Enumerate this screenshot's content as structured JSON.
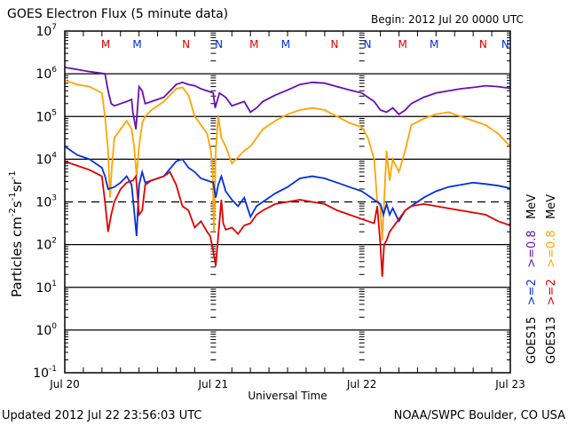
{
  "chart_data": {
    "type": "line",
    "title": "GOES Electron Flux (5 minute data)",
    "begin": "Begin: 2012 Jul 20 0000 UTC",
    "xlabel": "Universal Time",
    "ylabel_parts": {
      "main": "Particles cm",
      "exp1": "-2",
      "s": "s",
      "exp2": "-1",
      "sr": "sr",
      "exp3": "-1"
    },
    "updated": "Updated 2012 Jul 22 23:56:03 UTC",
    "credit": "NOAA/SWPC Boulder, CO USA",
    "x_range_hours": [
      0,
      72
    ],
    "x_ticks": [
      {
        "hour": 0,
        "label": "Jul 20"
      },
      {
        "hour": 24,
        "label": "Jul 21"
      },
      {
        "hour": 48,
        "label": "Jul 22"
      },
      {
        "hour": 72,
        "label": "Jul 23"
      }
    ],
    "y_scale": "log",
    "y_range_log10": [
      -1,
      7
    ],
    "y_ticks": [
      {
        "base": "10",
        "exp": "7",
        "v": 7
      },
      {
        "base": "10",
        "exp": "6",
        "v": 6
      },
      {
        "base": "10",
        "exp": "5",
        "v": 5
      },
      {
        "base": "10",
        "exp": "4",
        "v": 4
      },
      {
        "base": "10",
        "exp": "3",
        "v": 3
      },
      {
        "base": "10",
        "exp": "2",
        "v": 2
      },
      {
        "base": "10",
        "exp": "1",
        "v": 1
      },
      {
        "base": "10",
        "exp": "0",
        "v": 0
      },
      {
        "base": "10",
        "exp": "-1",
        "v": -1
      }
    ],
    "threshold_log10": 3,
    "grid_lines_log10": [
      6,
      5,
      4,
      2,
      1,
      0
    ],
    "markers": [
      {
        "hour": 6.6,
        "label": "M",
        "color": "#e00000"
      },
      {
        "hour": 11.7,
        "label": "M",
        "color": "#0030e0"
      },
      {
        "hour": 19.6,
        "label": "N",
        "color": "#e00000"
      },
      {
        "hour": 24.9,
        "label": "N",
        "color": "#0030e0"
      },
      {
        "hour": 30.6,
        "label": "M",
        "color": "#e00000"
      },
      {
        "hour": 35.7,
        "label": "M",
        "color": "#0030e0"
      },
      {
        "hour": 43.6,
        "label": "N",
        "color": "#e00000"
      },
      {
        "hour": 48.9,
        "label": "N",
        "color": "#0030e0"
      },
      {
        "hour": 54.6,
        "label": "M",
        "color": "#e00000"
      },
      {
        "hour": 59.7,
        "label": "M",
        "color": "#0030e0"
      },
      {
        "hour": 67.6,
        "label": "N",
        "color": "#e00000"
      },
      {
        "hour": 72.9,
        "label": "N",
        "color": "#0030e0"
      }
    ],
    "legend": {
      "placement": "right",
      "columns": [
        {
          "satellite": "GOES15",
          "low": ">=2",
          "low_color": "#0030e0",
          "high": ">=0.8",
          "high_color": "#6a0fb0",
          "unit": "MeV"
        },
        {
          "satellite": "GOES13",
          "low": ">=2",
          "low_color": "#e00000",
          "high": ">=0.8",
          "high_color": "#ffa500",
          "unit": "MeV"
        }
      ]
    },
    "series": [
      {
        "name": "GOES15 >=0.8 MeV",
        "color": "#6a0fb0",
        "x": [
          0,
          2,
          4,
          6.5,
          7,
          7.5,
          8,
          9,
          10,
          10.8,
          11,
          11.5,
          12,
          12.5,
          13,
          14,
          16,
          18,
          19,
          20,
          21,
          22,
          23,
          24,
          24.3,
          24.6,
          25,
          26,
          27,
          29,
          30,
          31,
          32,
          34,
          36,
          38,
          40,
          42,
          44,
          46,
          48,
          49,
          50,
          51,
          52,
          53,
          54,
          55,
          56,
          58,
          60,
          62,
          64,
          66,
          68,
          70,
          72
        ],
        "log10": [
          6.15,
          6.1,
          6.05,
          6.0,
          5.6,
          5.3,
          5.25,
          5.3,
          5.35,
          5.4,
          5.1,
          4.7,
          5.7,
          5.6,
          5.3,
          5.35,
          5.45,
          5.75,
          5.8,
          5.75,
          5.72,
          5.65,
          5.6,
          5.55,
          5.2,
          5.35,
          5.55,
          5.45,
          5.25,
          5.35,
          5.1,
          5.2,
          5.35,
          5.5,
          5.62,
          5.75,
          5.8,
          5.78,
          5.7,
          5.62,
          5.55,
          5.45,
          5.35,
          5.15,
          5.1,
          5.2,
          5.05,
          5.15,
          5.3,
          5.45,
          5.55,
          5.6,
          5.65,
          5.68,
          5.72,
          5.7,
          5.66
        ]
      },
      {
        "name": "GOES13 >=0.8 MeV",
        "color": "#ffa500",
        "x": [
          0,
          2,
          4,
          6,
          6.5,
          7,
          7.3,
          7.6,
          8,
          9,
          10,
          10.8,
          11.2,
          11.6,
          12,
          12.5,
          13,
          14,
          16,
          18,
          19,
          20,
          21,
          22,
          23,
          23.6,
          23.9,
          24.1,
          24.4,
          24.8,
          25.3,
          26,
          27,
          29,
          30,
          31,
          32,
          34,
          36,
          38,
          40,
          42,
          44,
          46,
          48,
          49,
          50,
          50.5,
          51,
          51.3,
          51.6,
          52,
          52.5,
          53,
          54,
          55,
          56,
          58,
          60,
          62,
          64,
          66,
          68,
          70,
          72
        ],
        "log10": [
          5.85,
          5.75,
          5.7,
          5.55,
          5.0,
          4.2,
          3.1,
          3.8,
          4.5,
          4.7,
          4.9,
          4.7,
          4.3,
          3.6,
          4.3,
          4.85,
          5.0,
          5.15,
          5.35,
          5.65,
          5.68,
          5.5,
          5.0,
          4.8,
          4.6,
          4.2,
          3.8,
          2.3,
          4.2,
          5.0,
          4.5,
          4.3,
          3.9,
          4.2,
          4.3,
          4.5,
          4.7,
          4.9,
          5.05,
          5.15,
          5.2,
          5.15,
          5.0,
          4.85,
          4.75,
          4.5,
          4.0,
          3.0,
          2.9,
          2.1,
          3.0,
          4.2,
          3.5,
          4.0,
          3.7,
          4.2,
          4.8,
          4.95,
          5.05,
          5.1,
          5.0,
          4.9,
          4.8,
          4.6,
          4.3
        ]
      },
      {
        "name": "GOES15 >=2 MeV",
        "color": "#0030e0",
        "x": [
          0,
          2,
          4,
          6,
          6.5,
          7,
          8,
          9,
          10,
          10.8,
          11.2,
          11.6,
          12,
          12.5,
          13,
          14,
          16,
          18,
          19,
          20,
          21,
          22,
          23,
          24,
          24.4,
          24.8,
          25.3,
          26,
          27,
          28,
          29,
          30,
          31,
          32,
          34,
          36,
          38,
          40,
          42,
          44,
          46,
          48,
          49,
          50,
          51,
          51.5,
          52,
          52.5,
          53,
          54,
          55,
          56,
          58,
          60,
          62,
          64,
          66,
          68,
          70,
          72
        ],
        "log10": [
          4.3,
          4.1,
          4.0,
          3.8,
          3.6,
          3.3,
          3.35,
          3.45,
          3.6,
          3.4,
          2.8,
          2.2,
          3.4,
          3.7,
          3.45,
          3.5,
          3.6,
          3.95,
          4.0,
          3.8,
          3.7,
          3.55,
          3.5,
          3.45,
          3.1,
          3.4,
          3.6,
          3.25,
          3.05,
          2.9,
          3.1,
          2.65,
          2.9,
          3.0,
          3.2,
          3.35,
          3.55,
          3.6,
          3.55,
          3.45,
          3.35,
          3.25,
          3.15,
          3.05,
          2.95,
          2.7,
          2.95,
          2.7,
          2.85,
          2.55,
          2.8,
          2.9,
          3.1,
          3.25,
          3.35,
          3.4,
          3.45,
          3.42,
          3.38,
          3.32
        ]
      },
      {
        "name": "GOES13 >=2 MeV",
        "color": "#e00000",
        "x": [
          0,
          2,
          4,
          6,
          6.5,
          7,
          7.5,
          8,
          9,
          10,
          11,
          11.5,
          12,
          12.5,
          13,
          14,
          16,
          17,
          18,
          19,
          20,
          21,
          22,
          23,
          23.5,
          24,
          24.4,
          24.8,
          25.3,
          25.6,
          26,
          27,
          28,
          29,
          30,
          31,
          32,
          34,
          36,
          38,
          40,
          42,
          44,
          46,
          48,
          49,
          50,
          50.5,
          51,
          51.3,
          51.6,
          52,
          52.5,
          53,
          54,
          55,
          56,
          58,
          60,
          62,
          64,
          66,
          68,
          70,
          72
        ],
        "log10": [
          3.95,
          3.85,
          3.75,
          3.6,
          3.0,
          2.3,
          2.7,
          3.0,
          3.3,
          3.45,
          3.5,
          3.6,
          2.7,
          2.8,
          3.4,
          3.5,
          3.6,
          3.7,
          3.4,
          2.9,
          2.8,
          2.4,
          2.55,
          2.3,
          2.2,
          1.85,
          1.5,
          2.2,
          3.05,
          2.5,
          2.35,
          2.4,
          2.25,
          2.45,
          2.5,
          2.7,
          2.8,
          2.95,
          3.0,
          3.05,
          3.0,
          2.95,
          2.8,
          2.7,
          2.6,
          2.55,
          2.5,
          2.9,
          2.0,
          1.25,
          2.0,
          2.1,
          2.3,
          2.4,
          2.6,
          2.8,
          2.9,
          2.95,
          2.9,
          2.85,
          2.8,
          2.75,
          2.7,
          2.55,
          2.45
        ]
      }
    ]
  }
}
